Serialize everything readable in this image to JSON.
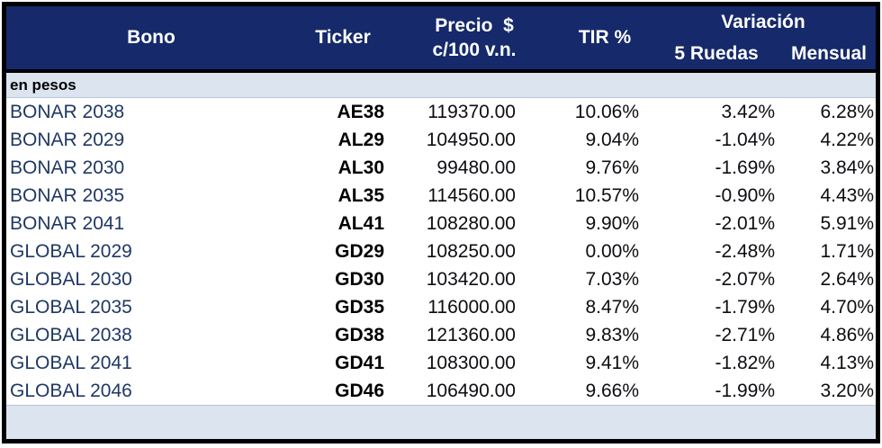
{
  "chart_data": {
    "type": "table",
    "header": {
      "bono": "Bono",
      "ticker": "Ticker",
      "precio_line1": "Precio  $",
      "precio_line2": "c/100 v.n.",
      "tir": "TIR %",
      "variacion": "Variación",
      "ruedas": "5 Ruedas",
      "mensual": "Mensual"
    },
    "section_label": "en pesos",
    "rows": [
      {
        "bono": "BONAR 2038",
        "ticker": "AE38",
        "precio": "119370.00",
        "tir": "10.06%",
        "ruedas": "3.42%",
        "mensual": "6.28%"
      },
      {
        "bono": "BONAR 2029",
        "ticker": "AL29",
        "precio": "104950.00",
        "tir": "9.04%",
        "ruedas": "-1.04%",
        "mensual": "4.22%"
      },
      {
        "bono": "BONAR 2030",
        "ticker": "AL30",
        "precio": "99480.00",
        "tir": "9.76%",
        "ruedas": "-1.69%",
        "mensual": "3.84%"
      },
      {
        "bono": "BONAR 2035",
        "ticker": "AL35",
        "precio": "114560.00",
        "tir": "10.57%",
        "ruedas": "-0.90%",
        "mensual": "4.43%"
      },
      {
        "bono": "BONAR 2041",
        "ticker": "AL41",
        "precio": "108280.00",
        "tir": "9.90%",
        "ruedas": "-2.01%",
        "mensual": "5.91%"
      },
      {
        "bono": "GLOBAL 2029",
        "ticker": "GD29",
        "precio": "108250.00",
        "tir": "0.00%",
        "ruedas": "-2.48%",
        "mensual": "1.71%"
      },
      {
        "bono": "GLOBAL 2030",
        "ticker": "GD30",
        "precio": "103420.00",
        "tir": "7.03%",
        "ruedas": "-2.07%",
        "mensual": "2.64%"
      },
      {
        "bono": "GLOBAL 2035",
        "ticker": "GD35",
        "precio": "116000.00",
        "tir": "8.47%",
        "ruedas": "-1.79%",
        "mensual": "4.70%"
      },
      {
        "bono": "GLOBAL 2038",
        "ticker": "GD38",
        "precio": "121360.00",
        "tir": "9.83%",
        "ruedas": "-2.71%",
        "mensual": "4.86%"
      },
      {
        "bono": "GLOBAL 2041",
        "ticker": "GD41",
        "precio": "108300.00",
        "tir": "9.41%",
        "ruedas": "-1.82%",
        "mensual": "4.13%"
      },
      {
        "bono": "GLOBAL 2046",
        "ticker": "GD46",
        "precio": "106490.00",
        "tir": "9.66%",
        "ruedas": "-1.99%",
        "mensual": "3.20%"
      }
    ]
  },
  "colors": {
    "header_bg": "#16296b",
    "header_text": "#ffffff",
    "section_bg": "#dce4f0",
    "bond_text": "#1f3864",
    "value_text": "#0d0d12",
    "frame_border": "#000000"
  }
}
